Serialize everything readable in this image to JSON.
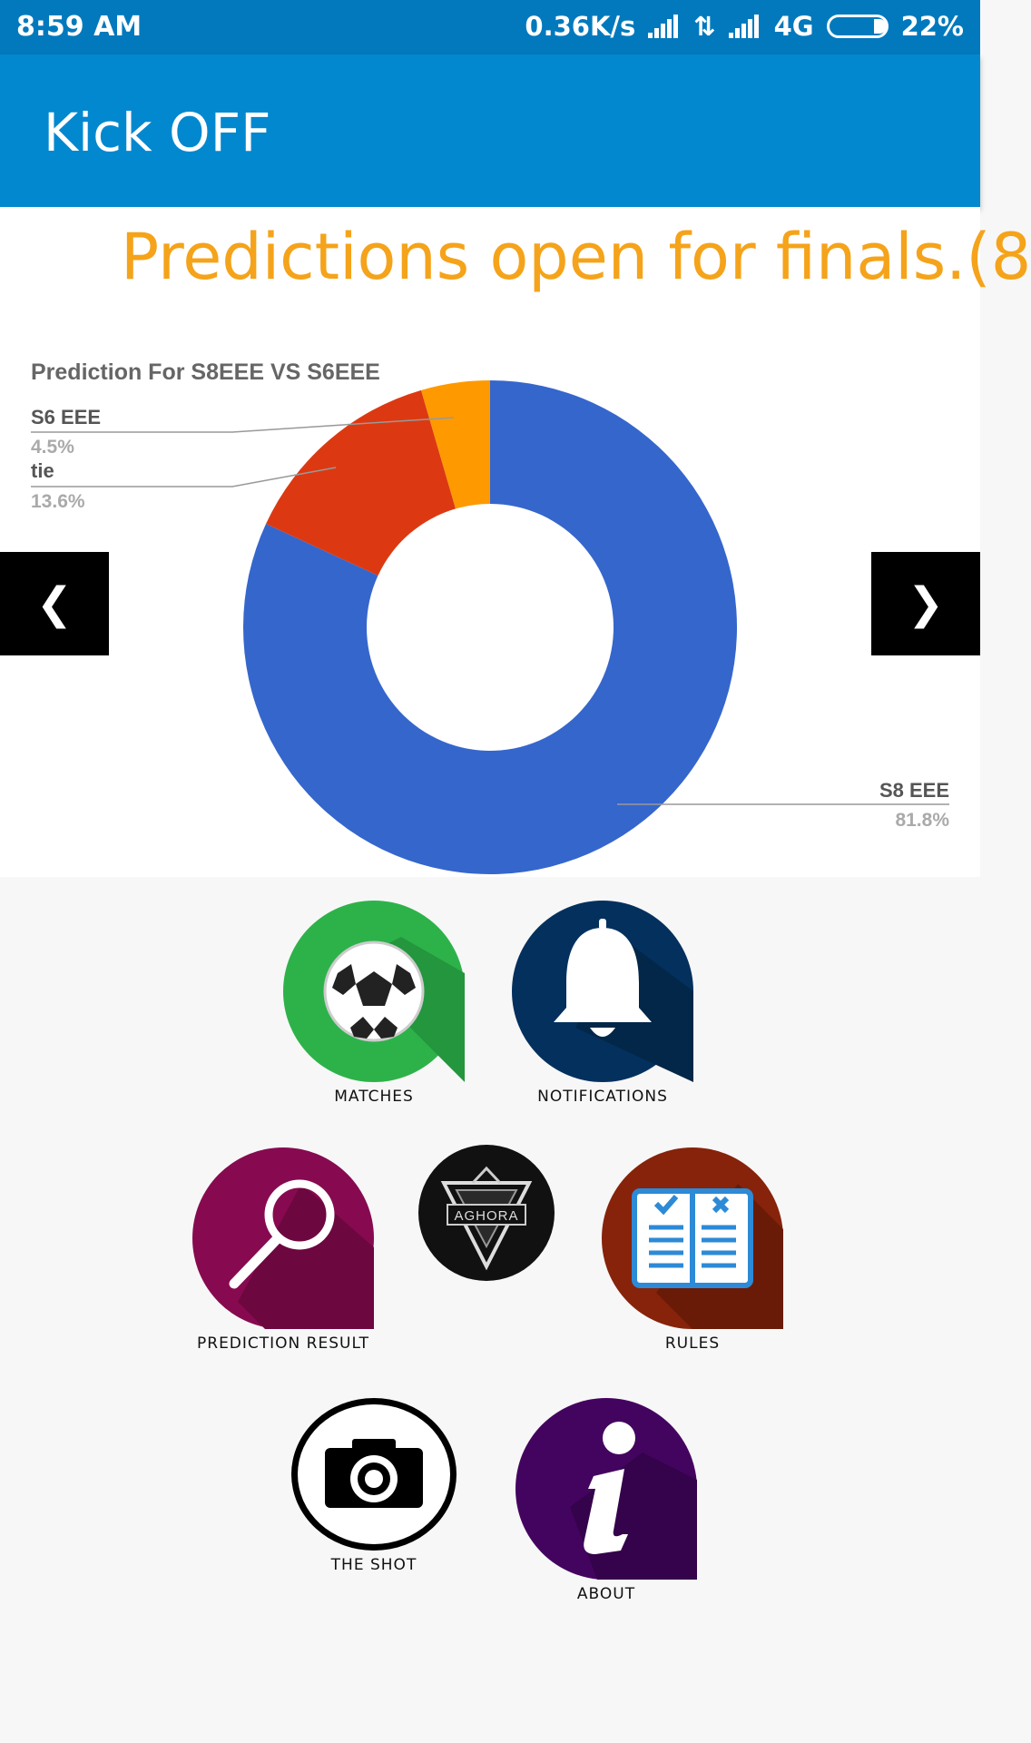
{
  "status_bar": {
    "time": "8:59 AM",
    "speed": "0.36K/s",
    "network": "4G",
    "battery": "22%"
  },
  "app_bar": {
    "title": "Kick OFF"
  },
  "marquee": {
    "text": "Predictions open for finals.(8"
  },
  "slider": {
    "prev_label": "❮",
    "next_label": "❯"
  },
  "chart_data": {
    "type": "pie",
    "title": "Prediction For S8EEE VS S6EEE",
    "donut": true,
    "slices": [
      {
        "label": "S8 EEE",
        "value": 81.8,
        "percent_label": "81.8%",
        "color": "#3566cc"
      },
      {
        "label": "tie",
        "value": 13.6,
        "percent_label": "13.6%",
        "color": "#dc3912"
      },
      {
        "label": "S6 EEE",
        "value": 4.5,
        "percent_label": "4.5%",
        "color": "#ff9900"
      }
    ]
  },
  "menu": {
    "matches": {
      "label": "MATCHES",
      "icon": "soccer-ball-icon",
      "color": "#2db24a"
    },
    "notifications": {
      "label": "NOTIFICATIONS",
      "icon": "bell-icon",
      "color": "#04305e"
    },
    "prediction_result": {
      "label": "PREDICTION RESULT",
      "icon": "magnifier-icon",
      "color": "#870a50"
    },
    "aghora": {
      "label": "AGHORA",
      "icon": "aghora-logo",
      "color": "#111111"
    },
    "rules": {
      "label": "RULES",
      "icon": "book-icon",
      "color": "#86230a"
    },
    "the_shot": {
      "label": "THE SHOT",
      "icon": "camera-icon",
      "color": "#000000"
    },
    "about": {
      "label": "ABOUT",
      "icon": "info-icon",
      "color": "#43045f"
    }
  }
}
